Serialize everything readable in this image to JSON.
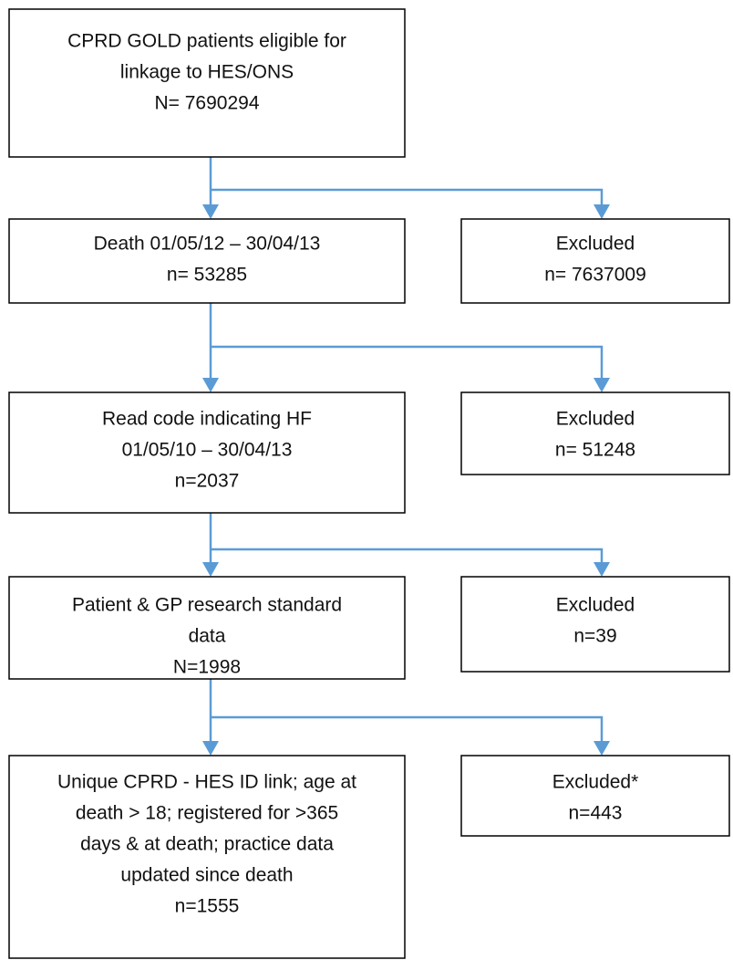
{
  "nodes": [
    {
      "lines": [
        "CPRD GOLD patients eligible for",
        "linkage to HES/ONS",
        "N= 7690294"
      ]
    },
    {
      "lines": [
        "Death 01/05/12 – 30/04/13",
        "n= 53285"
      ]
    },
    {
      "lines": [
        "Excluded",
        "n= 7637009"
      ]
    },
    {
      "lines": [
        "Read code indicating HF",
        "01/05/10 – 30/04/13",
        "n=2037"
      ]
    },
    {
      "lines": [
        "Excluded",
        "n= 51248"
      ]
    },
    {
      "lines": [
        "Patient & GP research standard",
        "data",
        "N=1998"
      ]
    },
    {
      "lines": [
        "Excluded",
        "n=39"
      ]
    },
    {
      "lines": [
        "Unique CPRD - HES ID link; age at",
        "death > 18; registered for >365",
        "days & at death; practice data",
        "updated since death",
        "n=1555"
      ]
    },
    {
      "lines": [
        "Excluded*",
        "n=443"
      ]
    }
  ]
}
